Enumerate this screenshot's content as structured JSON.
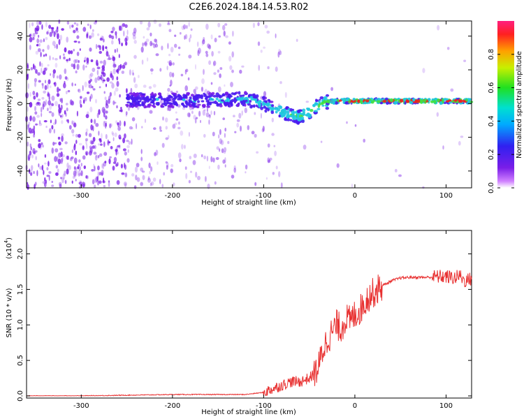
{
  "title": "C2E6.2024.184.14.53.R02",
  "chart_data": [
    {
      "type": "heatmap",
      "xlabel": "Height of straight line (km)",
      "ylabel": "Frequency (Hz)",
      "xlim": [
        -360,
        128
      ],
      "ylim": [
        -50,
        49
      ],
      "xticks": [
        -300,
        -200,
        -100,
        0,
        100
      ],
      "yticks": [
        -40,
        -20,
        0,
        20,
        40
      ],
      "colorbar": {
        "label": "Normalized spectral amplitude",
        "range": [
          0,
          1
        ],
        "ticks": [
          "0.0",
          "0.2",
          "0.4",
          "0.6",
          "0.8"
        ]
      },
      "colors": {
        "noise": "#7a1ee8",
        "low": "#4a1cf0",
        "mid": "#20c8e0",
        "high": "#40e040",
        "peak": "#f02020"
      },
      "ridge_center_hz": [
        [
          -250,
          2
        ],
        [
          -200,
          2
        ],
        [
          -150,
          2
        ],
        [
          -120,
          3
        ],
        [
          -100,
          0
        ],
        [
          -90,
          -3
        ],
        [
          -75,
          -6
        ],
        [
          -60,
          -8
        ],
        [
          -50,
          -5
        ],
        [
          -40,
          -1
        ],
        [
          -30,
          1
        ],
        [
          -20,
          1.5
        ],
        [
          0,
          1.5
        ],
        [
          50,
          1.5
        ],
        [
          100,
          1.5
        ],
        [
          128,
          1.5
        ]
      ],
      "ridge_amplitude": [
        [
          -250,
          0.3
        ],
        [
          -200,
          0.35
        ],
        [
          -150,
          0.4
        ],
        [
          -120,
          0.45
        ],
        [
          -100,
          0.5
        ],
        [
          -80,
          0.6
        ],
        [
          -60,
          0.65
        ],
        [
          -40,
          0.7
        ],
        [
          -20,
          0.9
        ],
        [
          0,
          0.95
        ],
        [
          50,
          0.95
        ],
        [
          100,
          0.95
        ],
        [
          128,
          0.95
        ]
      ]
    },
    {
      "type": "line",
      "xlabel": "Height of straight line (km)",
      "ylabel": "SNR (10 * v/v)",
      "multiplier": "(x10",
      "multiplier_exp": "4",
      "multiplier_close": ")",
      "xlim": [
        -360,
        128
      ],
      "ylim": [
        -0.03,
        2.33
      ],
      "xticks": [
        -300,
        -200,
        -100,
        0,
        100
      ],
      "yticks": [
        0.0,
        0.5,
        1.0,
        1.5,
        2.0
      ],
      "color": "#e83030",
      "series": [
        {
          "x": [
            -360,
            -300,
            -250,
            -200,
            -150,
            -120,
            -100,
            -90,
            -80,
            -70,
            -60,
            -50,
            -45,
            -40,
            -35,
            -30,
            -25,
            -20,
            -15,
            -10,
            -5,
            0,
            5,
            10,
            15,
            20,
            25,
            30,
            40,
            50,
            60,
            70,
            80,
            90,
            100,
            110,
            115,
            120,
            128
          ],
          "y": [
            0.0,
            0.0,
            0.01,
            0.02,
            0.02,
            0.02,
            0.05,
            0.1,
            0.15,
            0.2,
            0.2,
            0.25,
            0.3,
            0.4,
            0.65,
            0.8,
            0.9,
            1.0,
            0.95,
            1.1,
            1.05,
            1.15,
            1.2,
            1.3,
            1.4,
            1.45,
            1.5,
            1.55,
            1.62,
            1.66,
            1.67,
            1.67,
            1.67,
            1.68,
            1.68,
            1.66,
            1.7,
            1.62,
            1.65
          ]
        }
      ]
    }
  ]
}
